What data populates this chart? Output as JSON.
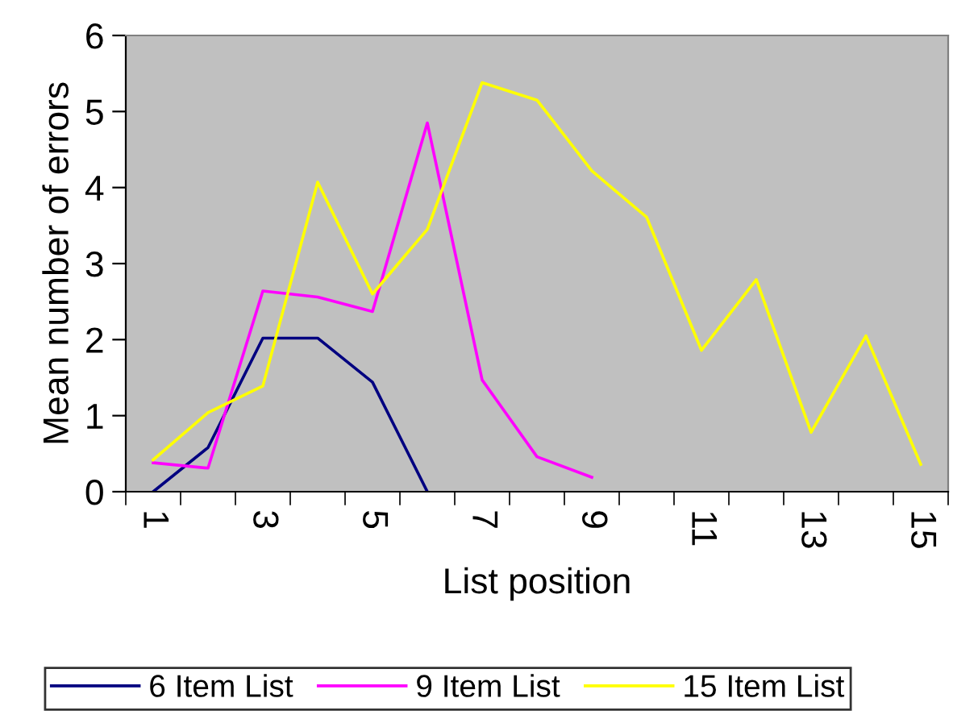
{
  "chart_data": {
    "type": "line",
    "xlabel": "List position",
    "ylabel": "Mean number of errors",
    "categories": [
      "1",
      null,
      "3",
      null,
      "5",
      null,
      "7",
      null,
      "9",
      null,
      "11",
      null,
      "13",
      null,
      "15"
    ],
    "series": [
      {
        "name": "6 Item List",
        "color": "#000080",
        "values": [
          0,
          0.58,
          2.02,
          2.02,
          1.44,
          0,
          null,
          null,
          null,
          null,
          null,
          null,
          null,
          null,
          null
        ]
      },
      {
        "name": "9 Item List",
        "color": "#ff00ff",
        "values": [
          0.38,
          0.31,
          2.64,
          2.56,
          2.37,
          4.85,
          1.47,
          0.46,
          0.19,
          null,
          null,
          null,
          null,
          null,
          null
        ]
      },
      {
        "name": "15 Item List",
        "color": "#ffff00",
        "values": [
          0.42,
          1.04,
          1.39,
          4.07,
          2.6,
          3.45,
          5.38,
          5.15,
          4.22,
          3.61,
          1.86,
          2.79,
          0.78,
          2.05,
          0.36
        ]
      }
    ],
    "ylim": [
      0,
      6
    ],
    "yticks": [
      0,
      1,
      2,
      3,
      4,
      5,
      6
    ],
    "grid": false,
    "legend": "bottom",
    "marker": "none",
    "line_style": "solid"
  }
}
